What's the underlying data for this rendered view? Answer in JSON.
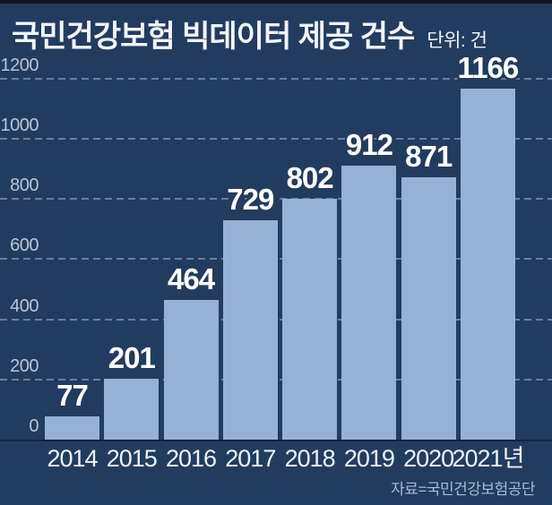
{
  "header": {
    "title": "국민건강보험 빅데이터 제공 건수",
    "unit_label": "단위: 건"
  },
  "source": "자료=국민건강보험공단",
  "colors": {
    "background": "#223c60",
    "top_strip": "#0d1625",
    "bar": "#95b1d4",
    "gridline": "#7e95b5",
    "axis_line": "#17233a",
    "title_text": "#f2f5fa",
    "ytick_text": "#b8c5d8",
    "xtick_text": "#eef2f7",
    "value_text": "#ffffff",
    "source_text": "#a9bad2"
  },
  "chart_data": {
    "type": "bar",
    "title": "국민건강보험 빅데이터 제공 건수",
    "unit": "건",
    "categories": [
      "2014",
      "2015",
      "2016",
      "2017",
      "2018",
      "2019",
      "2020",
      "2021년"
    ],
    "values": [
      77,
      201,
      464,
      729,
      802,
      912,
      871,
      1166
    ],
    "xlabel": "",
    "ylabel": "",
    "ylim": [
      0,
      1200
    ],
    "yticks": [
      0,
      200,
      400,
      600,
      800,
      1000,
      1200
    ],
    "grid": "horizontal-dashed",
    "legend": "none",
    "value_labels": true,
    "source": "자료=국민건강보험공단"
  }
}
